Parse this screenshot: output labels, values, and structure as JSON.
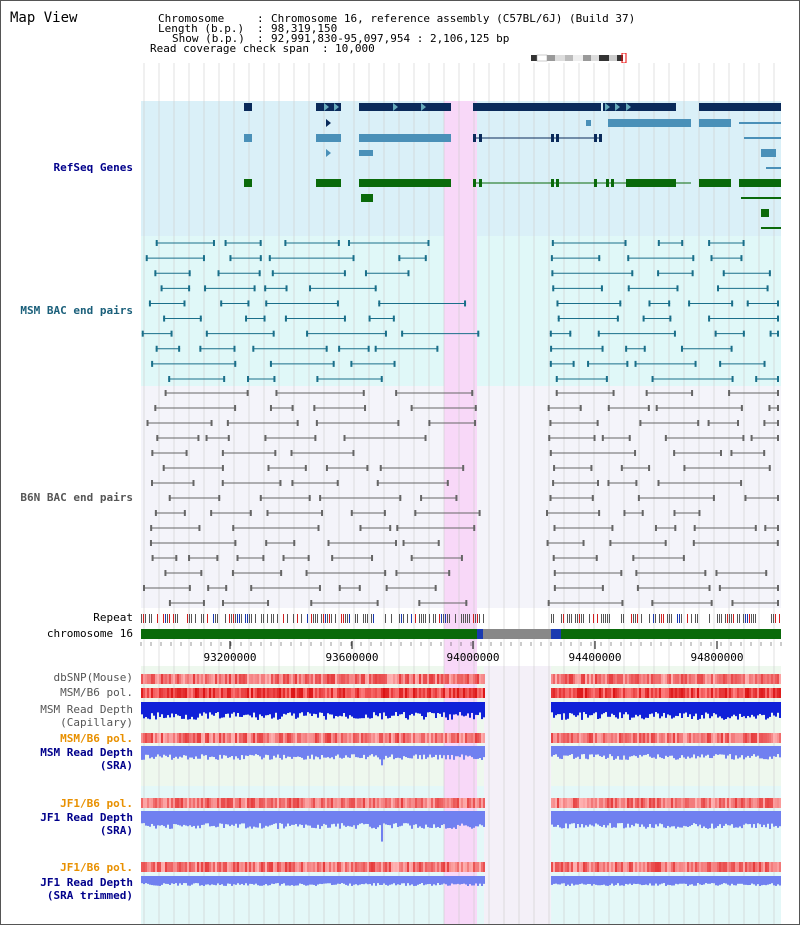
{
  "header": {
    "title": "Map View",
    "chromosome_label": "Chromosome",
    "chromosome_value": "Chromosome 16, reference assembly (C57BL/6J) (Build 37)",
    "length_label": "Length (b.p.)",
    "length_value": "98,319,150",
    "show_label": "Show (b.p.)",
    "show_value": "92,991,830-95,097,954 : 2,106,125 bp",
    "read_cov_label": "Read coverage check span",
    "read_cov_value": "10,000"
  },
  "tracks": {
    "refseq": "RefSeq Genes",
    "msm_bac": "MSM BAC end pairs",
    "b6n_bac": "B6N BAC end pairs",
    "repeat": "Repeat",
    "chromosome": "chromosome 16",
    "dbsnp": "dbSNP(Mouse)",
    "msm_b6_pol": "MSM/B6 pol.",
    "msm_depth_cap_1": "MSM Read Depth",
    "msm_depth_cap_2": "(Capillary)",
    "msm_b6_pol2": "MSM/B6 pol.",
    "msm_depth_sra_1": "MSM Read Depth",
    "msm_depth_sra_2": "(SRA)",
    "jf1_pol": "JF1/B6 pol.",
    "jf1_depth_1": "JF1 Read Depth",
    "jf1_depth_2": "(SRA)",
    "jf1_pol2": "JF1/B6 pol.",
    "jf1_trim_1": "JF1 Read Depth",
    "jf1_trim_2": "(SRA trimmed)"
  },
  "axis": {
    "ticks": [
      "93200000",
      "93600000",
      "94000000",
      "94400000",
      "94800000"
    ]
  },
  "colors": {
    "refseq_bg": "#daf0f8",
    "msm_bg": "#e0f8f8",
    "b6n_bg": "#f4f4fa",
    "highlight": "#f8d8f8",
    "navy": "#0a2a5a",
    "steel": "#4a90b8",
    "green": "#0a6a0a",
    "label_navy": "#00008b",
    "label_teal": "#1a5f7a",
    "label_gray": "#555555",
    "label_orange": "#e89000"
  }
}
